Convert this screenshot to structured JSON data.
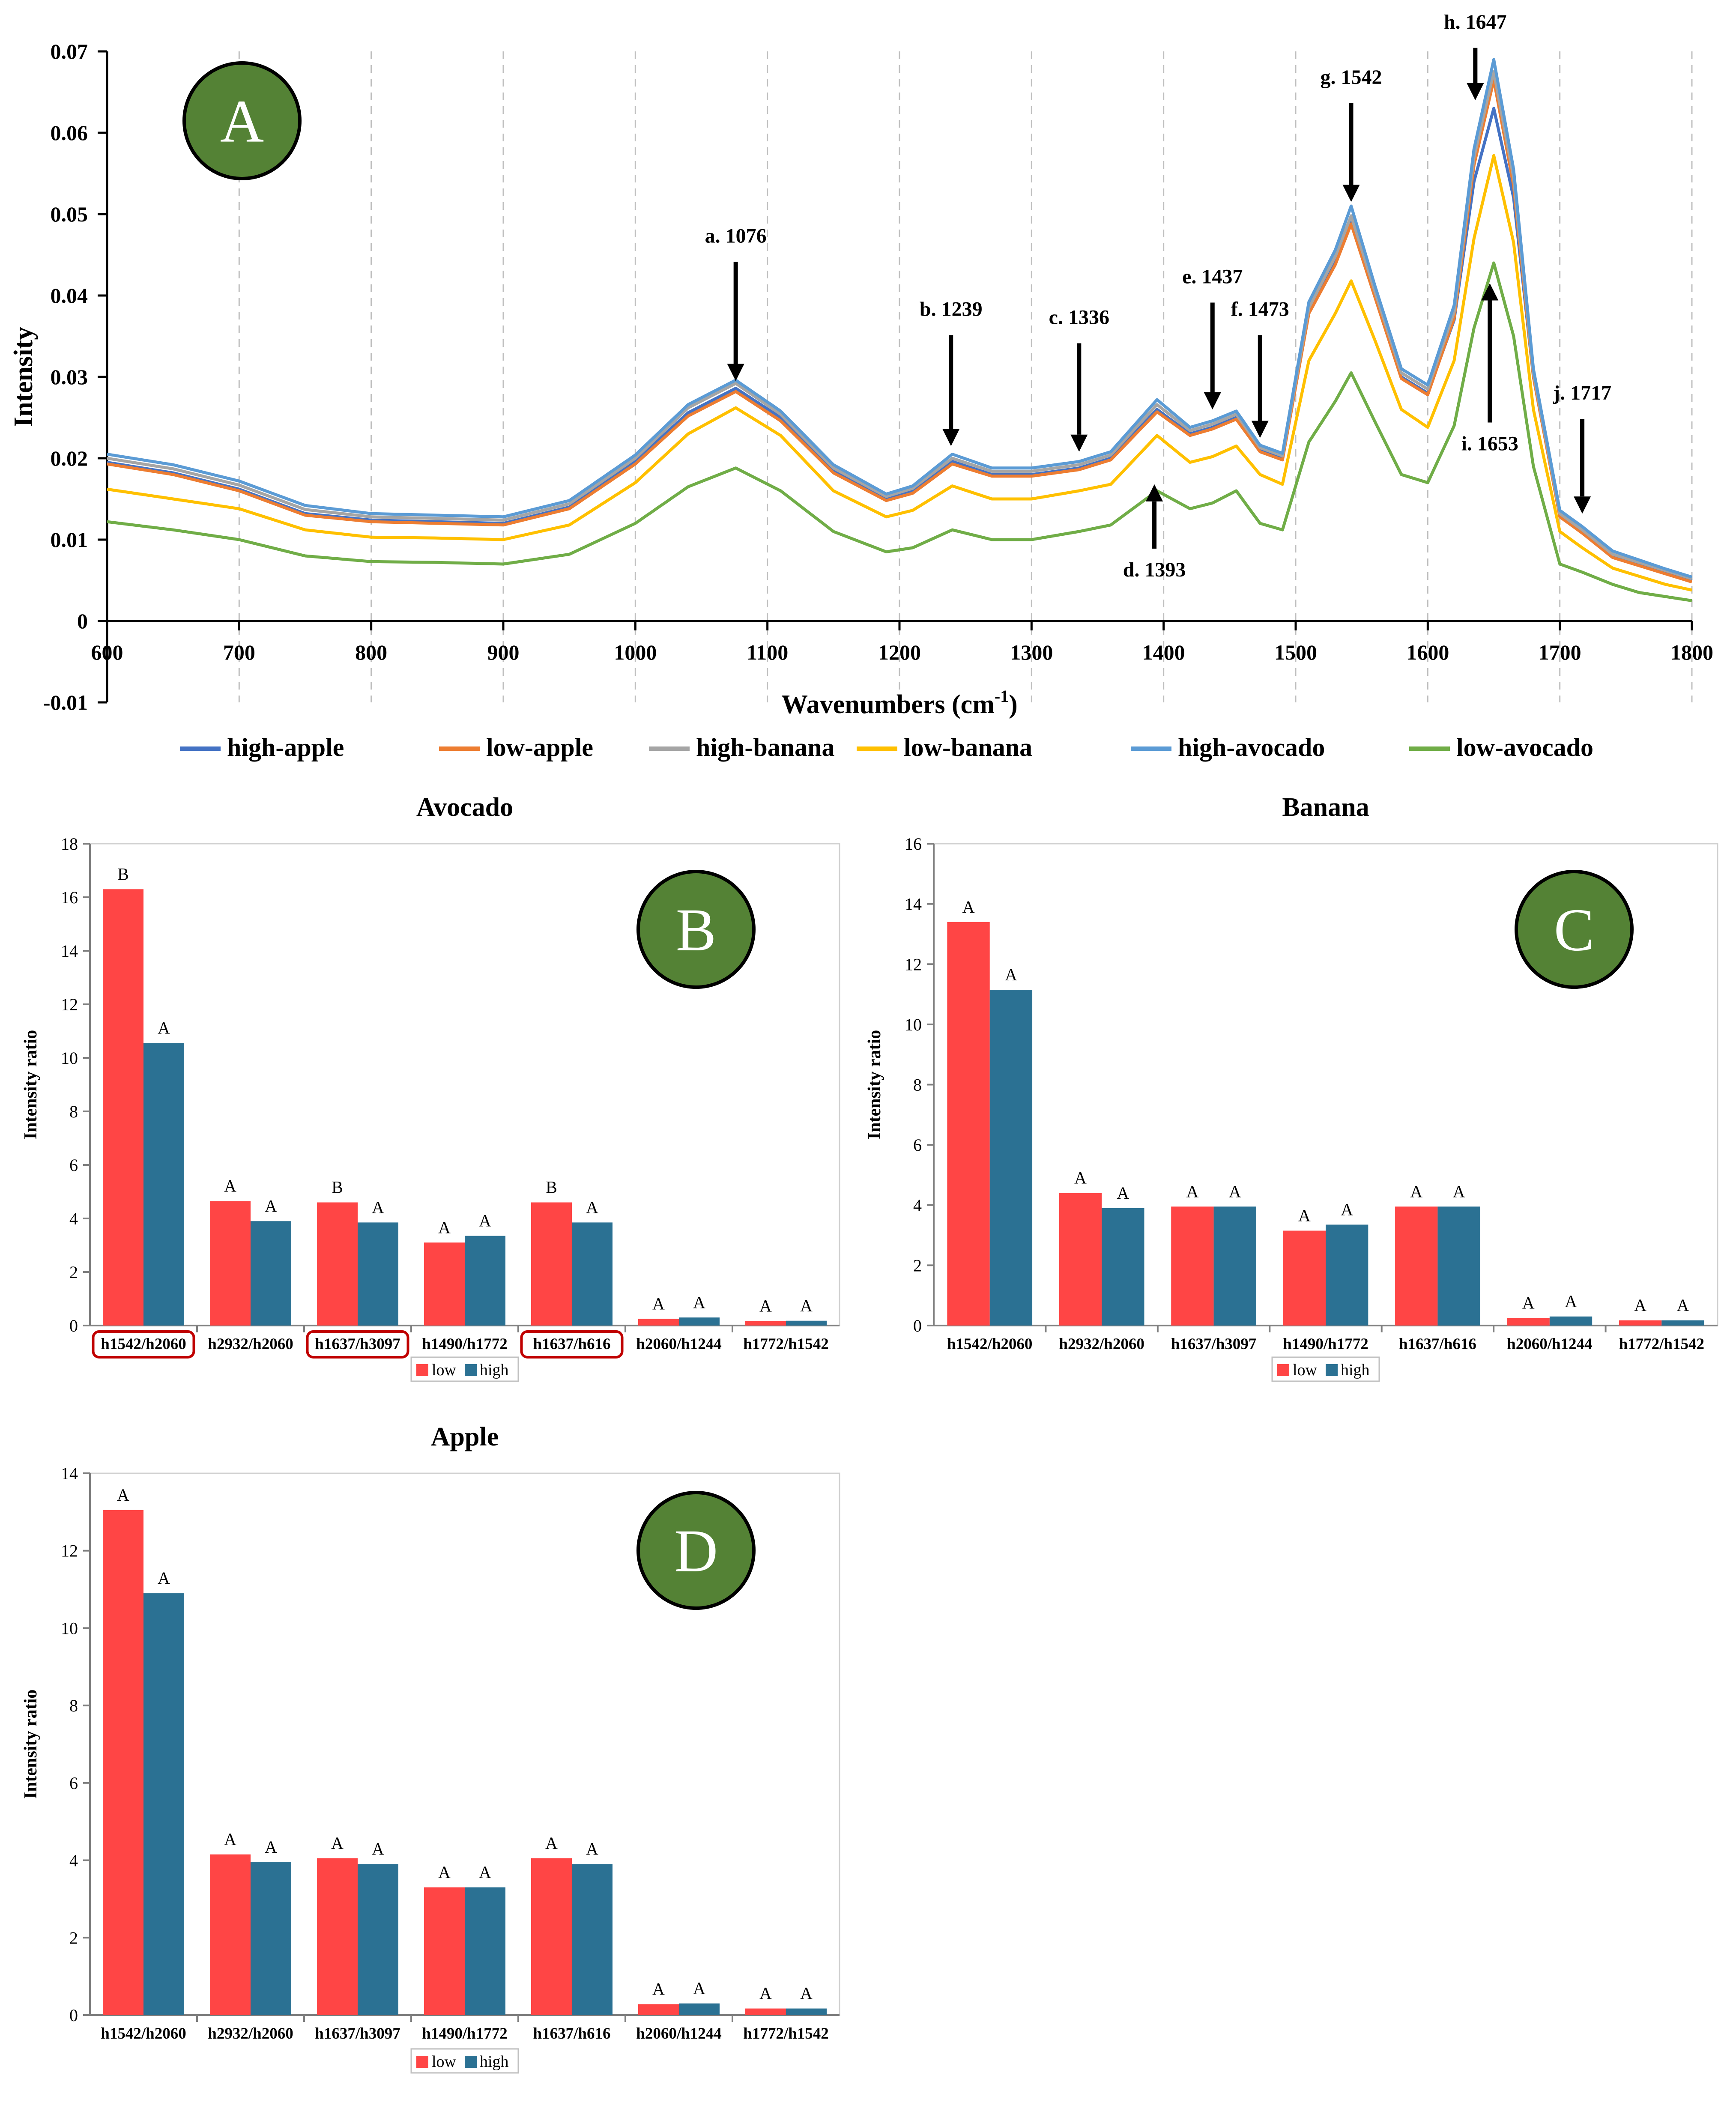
{
  "colors": {
    "low": "#ff4545",
    "high": "#2b7193",
    "panel_circle": "#548235",
    "highlight_box": "#c00000"
  },
  "chart_data": [
    {
      "id": "A",
      "type": "line",
      "panel_label": "A",
      "title": "",
      "xlabel": "Wavenumbers (cm",
      "xlabel_sup": "-1",
      "xlabel_close": ")",
      "ylabel": "Intensity",
      "xlim": [
        600,
        1800
      ],
      "ylim": [
        -0.01,
        0.07
      ],
      "x_ticks": [
        "600",
        "700",
        "800",
        "900",
        "1000",
        "1100",
        "1200",
        "1300",
        "1400",
        "1500",
        "1600",
        "1700",
        "1800"
      ],
      "y_ticks": [
        "-0.01",
        "0",
        "0.01",
        "0.02",
        "0.03",
        "0.04",
        "0.05",
        "0.06",
        "0.07"
      ],
      "grid": "vertical dashed",
      "legend_position": "bottom",
      "series": [
        {
          "name": "high-apple",
          "color": "#4472c4",
          "x": [
            600,
            650,
            700,
            750,
            800,
            850,
            900,
            950,
            1000,
            1040,
            1076,
            1110,
            1150,
            1190,
            1210,
            1240,
            1270,
            1300,
            1336,
            1360,
            1395,
            1420,
            1437,
            1455,
            1473,
            1490,
            1510,
            1530,
            1542,
            1560,
            1580,
            1600,
            1620,
            1635,
            1650,
            1665,
            1680,
            1700,
            1717,
            1740,
            1760,
            1780,
            1800
          ],
          "y": [
            0.0195,
            0.0182,
            0.0162,
            0.0132,
            0.0124,
            0.0122,
            0.012,
            0.014,
            0.0196,
            0.0256,
            0.0286,
            0.025,
            0.0185,
            0.015,
            0.016,
            0.0196,
            0.018,
            0.018,
            0.0188,
            0.02,
            0.026,
            0.023,
            0.0238,
            0.025,
            0.021,
            0.02,
            0.038,
            0.044,
            0.049,
            0.04,
            0.03,
            0.028,
            0.037,
            0.054,
            0.063,
            0.052,
            0.03,
            0.013,
            0.011,
            0.008,
            0.007,
            0.006,
            0.005
          ]
        },
        {
          "name": "low-apple",
          "color": "#ed7d31",
          "x": [
            600,
            650,
            700,
            750,
            800,
            850,
            900,
            950,
            1000,
            1040,
            1076,
            1110,
            1150,
            1190,
            1210,
            1240,
            1270,
            1300,
            1336,
            1360,
            1395,
            1420,
            1437,
            1455,
            1473,
            1490,
            1510,
            1530,
            1542,
            1560,
            1580,
            1600,
            1620,
            1635,
            1650,
            1665,
            1680,
            1700,
            1717,
            1740,
            1760,
            1780,
            1800
          ],
          "y": [
            0.0193,
            0.018,
            0.016,
            0.013,
            0.0122,
            0.012,
            0.0118,
            0.0138,
            0.0193,
            0.0252,
            0.0282,
            0.0246,
            0.0182,
            0.0148,
            0.0157,
            0.0193,
            0.0178,
            0.0178,
            0.0186,
            0.0198,
            0.0257,
            0.0228,
            0.0236,
            0.0248,
            0.0208,
            0.0198,
            0.0378,
            0.0438,
            0.0488,
            0.0398,
            0.0298,
            0.0278,
            0.0372,
            0.056,
            0.0665,
            0.0535,
            0.03,
            0.0128,
            0.0108,
            0.0078,
            0.0068,
            0.0058,
            0.0048
          ]
        },
        {
          "name": "high-banana",
          "color": "#a5a5a5",
          "x": [
            600,
            650,
            700,
            750,
            800,
            850,
            900,
            950,
            1000,
            1040,
            1076,
            1110,
            1150,
            1190,
            1210,
            1240,
            1270,
            1300,
            1336,
            1360,
            1395,
            1420,
            1437,
            1455,
            1473,
            1490,
            1510,
            1530,
            1542,
            1560,
            1580,
            1600,
            1620,
            1635,
            1650,
            1665,
            1680,
            1700,
            1717,
            1740,
            1760,
            1780,
            1800
          ],
          "y": [
            0.02,
            0.0187,
            0.0167,
            0.0137,
            0.0128,
            0.0126,
            0.0124,
            0.0144,
            0.02,
            0.0262,
            0.0292,
            0.0254,
            0.0188,
            0.0153,
            0.0163,
            0.02,
            0.0184,
            0.0184,
            0.0192,
            0.0204,
            0.0266,
            0.0234,
            0.0242,
            0.0254,
            0.0213,
            0.0203,
            0.0385,
            0.0448,
            0.0498,
            0.0405,
            0.0305,
            0.0285,
            0.038,
            0.057,
            0.0675,
            0.0545,
            0.0305,
            0.0132,
            0.0112,
            0.0082,
            0.0072,
            0.0062,
            0.0052
          ]
        },
        {
          "name": "low-banana",
          "color": "#ffc000",
          "x": [
            600,
            650,
            700,
            750,
            800,
            850,
            900,
            950,
            1000,
            1040,
            1076,
            1110,
            1150,
            1190,
            1210,
            1240,
            1270,
            1300,
            1336,
            1360,
            1395,
            1420,
            1437,
            1455,
            1473,
            1490,
            1510,
            1530,
            1542,
            1560,
            1580,
            1600,
            1620,
            1635,
            1650,
            1665,
            1680,
            1700,
            1717,
            1740,
            1760,
            1780,
            1800
          ],
          "y": [
            0.0162,
            0.015,
            0.0138,
            0.0112,
            0.0103,
            0.0102,
            0.01,
            0.0118,
            0.017,
            0.023,
            0.0262,
            0.0228,
            0.016,
            0.0128,
            0.0136,
            0.0166,
            0.015,
            0.015,
            0.016,
            0.0168,
            0.0228,
            0.0195,
            0.0202,
            0.0215,
            0.018,
            0.0168,
            0.032,
            0.0378,
            0.0418,
            0.0345,
            0.026,
            0.0238,
            0.032,
            0.047,
            0.0572,
            0.0465,
            0.026,
            0.011,
            0.009,
            0.0065,
            0.0055,
            0.0045,
            0.0038
          ]
        },
        {
          "name": "high-avocado",
          "color": "#5b9bd5",
          "x": [
            600,
            650,
            700,
            750,
            800,
            850,
            900,
            950,
            1000,
            1040,
            1076,
            1110,
            1150,
            1190,
            1210,
            1240,
            1270,
            1300,
            1336,
            1360,
            1395,
            1420,
            1437,
            1455,
            1473,
            1490,
            1510,
            1530,
            1542,
            1560,
            1580,
            1600,
            1620,
            1635,
            1650,
            1665,
            1680,
            1700,
            1717,
            1740,
            1760,
            1780,
            1800
          ],
          "y": [
            0.0205,
            0.0192,
            0.0172,
            0.0142,
            0.0132,
            0.013,
            0.0128,
            0.0148,
            0.0204,
            0.0266,
            0.0296,
            0.0258,
            0.0192,
            0.0156,
            0.0166,
            0.0205,
            0.0188,
            0.0188,
            0.0196,
            0.0208,
            0.0272,
            0.0238,
            0.0246,
            0.0258,
            0.0216,
            0.0206,
            0.0392,
            0.0456,
            0.051,
            0.0412,
            0.031,
            0.029,
            0.0388,
            0.058,
            0.069,
            0.0555,
            0.031,
            0.0136,
            0.0116,
            0.0086,
            0.0075,
            0.0064,
            0.0054
          ]
        },
        {
          "name": "low-avocado",
          "color": "#70ad47",
          "x": [
            600,
            650,
            700,
            750,
            800,
            850,
            900,
            950,
            1000,
            1040,
            1076,
            1110,
            1150,
            1190,
            1210,
            1240,
            1270,
            1300,
            1336,
            1360,
            1395,
            1420,
            1437,
            1455,
            1473,
            1490,
            1510,
            1530,
            1542,
            1560,
            1580,
            1600,
            1620,
            1635,
            1650,
            1665,
            1680,
            1700,
            1717,
            1740,
            1760,
            1780,
            1800
          ],
          "y": [
            0.0122,
            0.0112,
            0.01,
            0.008,
            0.0073,
            0.0072,
            0.007,
            0.0082,
            0.012,
            0.0165,
            0.0188,
            0.016,
            0.011,
            0.0085,
            0.009,
            0.0112,
            0.01,
            0.01,
            0.011,
            0.0118,
            0.016,
            0.0138,
            0.0145,
            0.016,
            0.012,
            0.0112,
            0.022,
            0.027,
            0.0305,
            0.0245,
            0.018,
            0.017,
            0.024,
            0.036,
            0.044,
            0.035,
            0.019,
            0.007,
            0.006,
            0.0045,
            0.0035,
            0.003,
            0.0025
          ]
        }
      ],
      "peak_annotations": [
        {
          "label": "a. 1076",
          "x": 1076,
          "tip_y": 0.0295,
          "direction": "down",
          "text_y": 0.0465
        },
        {
          "label": "b. 1239",
          "x": 1239,
          "tip_y": 0.0215,
          "direction": "down",
          "text_y": 0.0375
        },
        {
          "label": "c. 1336",
          "x": 1336,
          "tip_y": 0.0208,
          "direction": "down",
          "text_y": 0.0365
        },
        {
          "label": "d. 1393",
          "x": 1393,
          "tip_y": 0.0168,
          "direction": "up",
          "text_y": 0.006
        },
        {
          "label": "e. 1437",
          "x": 1437,
          "tip_y": 0.026,
          "direction": "down",
          "text_y": 0.0415
        },
        {
          "label": "f. 1473",
          "x": 1473,
          "tip_y": 0.0225,
          "direction": "down",
          "text_y": 0.0375
        },
        {
          "label": "g. 1542",
          "x": 1542,
          "tip_y": 0.0515,
          "direction": "down",
          "text_y": 0.066
        },
        {
          "label": "h. 1647",
          "x": 1636,
          "tip_y": 0.064,
          "direction": "down",
          "text_y": 0.0728
        },
        {
          "label": "i. 1653",
          "x": 1647,
          "tip_y": 0.0415,
          "direction": "up",
          "text_y": 0.0215
        },
        {
          "label": "j. 1717",
          "x": 1717,
          "tip_y": 0.0132,
          "direction": "down",
          "text_y": 0.0272
        }
      ]
    },
    {
      "id": "B",
      "type": "bar",
      "panel_label": "B",
      "title": "Avocado",
      "xlabel": "",
      "ylabel": "Intensity ratio",
      "ylim": [
        0,
        18
      ],
      "y_ticks": [
        "0",
        "2",
        "4",
        "6",
        "8",
        "10",
        "12",
        "14",
        "16",
        "18"
      ],
      "categories": [
        "h1542/h2060",
        "h2932/h2060",
        "h1637/h3097",
        "h1490/h1772",
        "h1637/h616",
        "h2060/h1244",
        "h1772/h1542"
      ],
      "highlighted_categories": [
        "h1542/h2060",
        "h1637/h3097",
        "h1637/h616"
      ],
      "series": [
        {
          "name": "low",
          "values": [
            16.3,
            4.65,
            4.6,
            3.1,
            4.6,
            0.25,
            0.17
          ],
          "letters": [
            "B",
            "A",
            "B",
            "A",
            "B",
            "A",
            "A"
          ]
        },
        {
          "name": "high",
          "values": [
            10.55,
            3.9,
            3.85,
            3.35,
            3.85,
            0.3,
            0.18
          ],
          "letters": [
            "A",
            "A",
            "A",
            "A",
            "A",
            "A",
            "A"
          ]
        }
      ],
      "legend": [
        "low",
        "high"
      ],
      "legend_position": "bottom"
    },
    {
      "id": "C",
      "type": "bar",
      "panel_label": "C",
      "title": "Banana",
      "xlabel": "",
      "ylabel": "Intensity ratio",
      "ylim": [
        0,
        16
      ],
      "y_ticks": [
        "0",
        "2",
        "4",
        "6",
        "8",
        "10",
        "12",
        "14",
        "16"
      ],
      "categories": [
        "h1542/h2060",
        "h2932/h2060",
        "h1637/h3097",
        "h1490/h1772",
        "h1637/h616",
        "h2060/h1244",
        "h1772/h1542"
      ],
      "highlighted_categories": [],
      "series": [
        {
          "name": "low",
          "values": [
            13.4,
            4.4,
            3.95,
            3.15,
            3.95,
            0.25,
            0.17
          ],
          "letters": [
            "A",
            "A",
            "A",
            "A",
            "A",
            "A",
            "A"
          ]
        },
        {
          "name": "high",
          "values": [
            11.15,
            3.9,
            3.95,
            3.35,
            3.95,
            0.3,
            0.17
          ],
          "letters": [
            "A",
            "A",
            "A",
            "A",
            "A",
            "A",
            "A"
          ]
        }
      ],
      "legend": [
        "low",
        "high"
      ],
      "legend_position": "bottom"
    },
    {
      "id": "D",
      "type": "bar",
      "panel_label": "D",
      "title": "Apple",
      "xlabel": "",
      "ylabel": "Intensity ratio",
      "ylim": [
        0,
        14
      ],
      "y_ticks": [
        "0",
        "2",
        "4",
        "6",
        "8",
        "10",
        "12",
        "14"
      ],
      "categories": [
        "h1542/h2060",
        "h2932/h2060",
        "h1637/h3097",
        "h1490/h1772",
        "h1637/h616",
        "h2060/h1244",
        "h1772/h1542"
      ],
      "highlighted_categories": [],
      "series": [
        {
          "name": "low",
          "values": [
            13.05,
            4.15,
            4.05,
            3.3,
            4.05,
            0.28,
            0.17
          ],
          "letters": [
            "A",
            "A",
            "A",
            "A",
            "A",
            "A",
            "A"
          ]
        },
        {
          "name": "high",
          "values": [
            10.9,
            3.95,
            3.9,
            3.3,
            3.9,
            0.3,
            0.17
          ],
          "letters": [
            "A",
            "A",
            "A",
            "A",
            "A",
            "A",
            "A"
          ]
        }
      ],
      "legend": [
        "low",
        "high"
      ],
      "legend_position": "bottom"
    }
  ]
}
